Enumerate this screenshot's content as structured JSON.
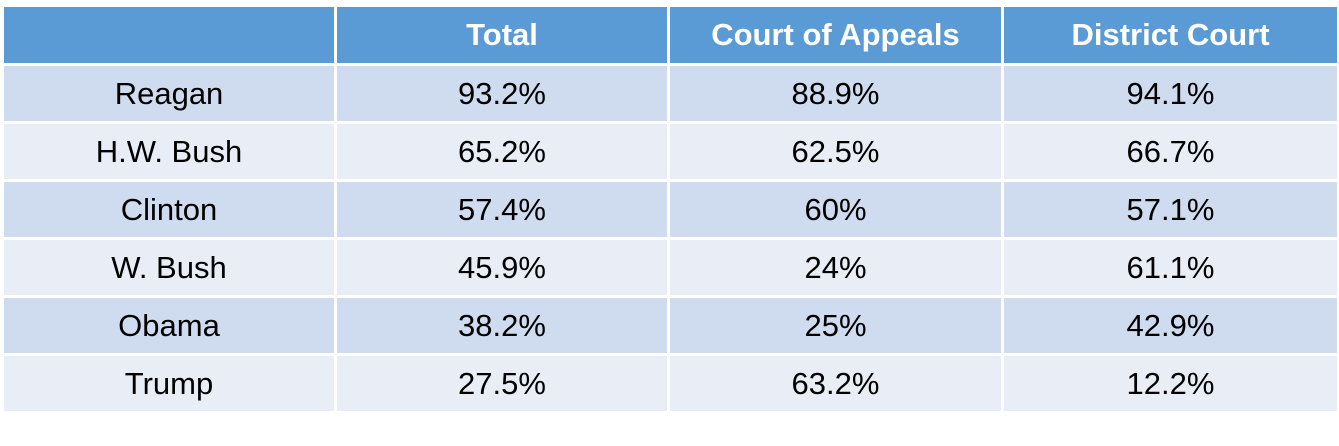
{
  "table": {
    "header": [
      "Total",
      "Court of Appeals",
      "District Court"
    ],
    "rows": [
      [
        "Reagan",
        "93.2%",
        "88.9%",
        "94.1%"
      ],
      [
        "H.W. Bush",
        "65.2%",
        "62.5%",
        "66.7%"
      ],
      [
        "Clinton",
        "57.4%",
        "60%",
        "57.1%"
      ],
      [
        "W. Bush",
        "45.9%",
        "24%",
        "61.1%"
      ],
      [
        "Obama",
        "38.2%",
        "25%",
        "42.9%"
      ],
      [
        "Trump",
        "27.5%",
        "63.2%",
        "12.2%"
      ]
    ]
  }
}
